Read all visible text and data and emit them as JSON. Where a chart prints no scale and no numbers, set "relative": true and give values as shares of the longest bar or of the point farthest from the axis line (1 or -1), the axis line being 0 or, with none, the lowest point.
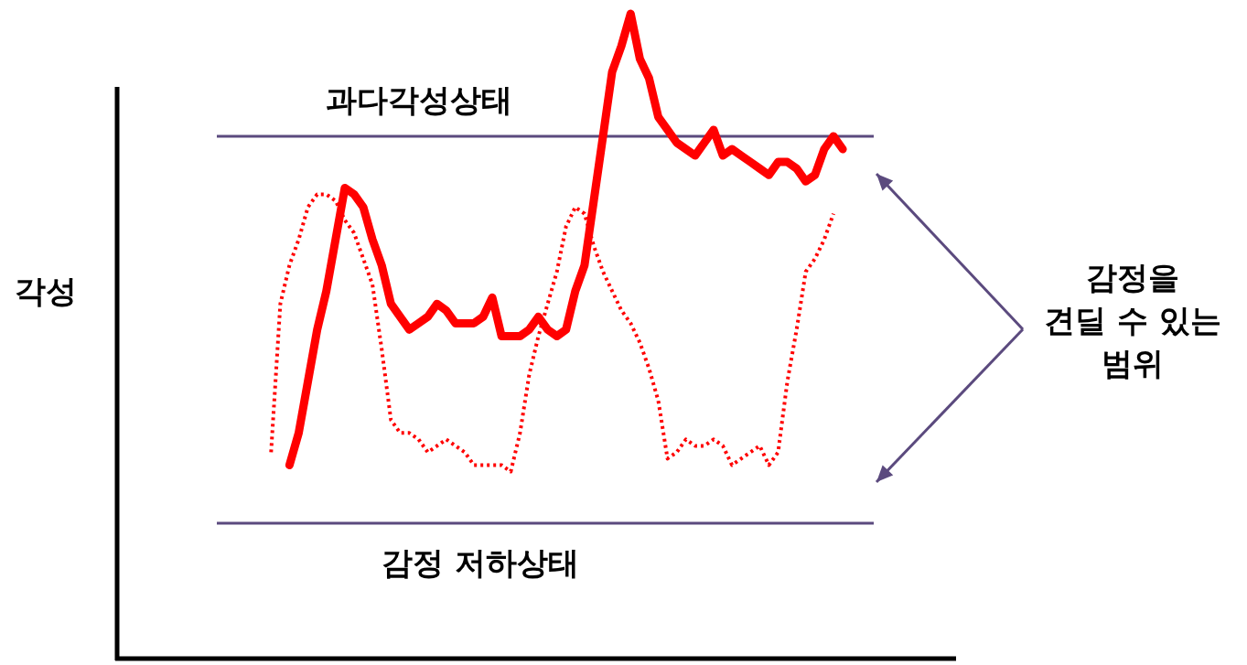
{
  "chart_data": {
    "type": "line",
    "relative": true,
    "ylabel": "각성",
    "categories": [
      null,
      null,
      null,
      null,
      null,
      null,
      null,
      null,
      null,
      null,
      null,
      null,
      null,
      null,
      null,
      null,
      null,
      null,
      null,
      null,
      null,
      null,
      null,
      null,
      null,
      null,
      null,
      null,
      null,
      null,
      null,
      null,
      null,
      null,
      null,
      null,
      null,
      null,
      null,
      null,
      null,
      null,
      null,
      null,
      null,
      null,
      null,
      null,
      null,
      null,
      null,
      null,
      null,
      null,
      null,
      null,
      null,
      null,
      null,
      null,
      null,
      null,
      null,
      null,
      null,
      null,
      null,
      null,
      null,
      null,
      null,
      null,
      null,
      null,
      null,
      null,
      null,
      null,
      null,
      null,
      null,
      null,
      null,
      null,
      null,
      null,
      null,
      null,
      null,
      null,
      null
    ],
    "series": [
      {
        "color": "#ff0000",
        "line_style": "solid",
        "values": [
          null,
          null,
          null,
          null,
          null,
          null,
          null,
          null,
          null,
          null,
          null,
          null,
          null,
          null,
          null,
          null,
          null,
          null,
          0.3,
          0.35,
          0.43,
          0.51,
          0.57,
          0.65,
          0.73,
          0.72,
          0.7,
          0.65,
          0.61,
          0.55,
          0.53,
          0.51,
          0.52,
          0.53,
          0.55,
          0.54,
          0.52,
          0.52,
          0.52,
          0.53,
          0.56,
          0.5,
          0.5,
          0.5,
          0.51,
          0.53,
          0.51,
          0.5,
          0.51,
          0.57,
          0.61,
          0.71,
          0.81,
          0.91,
          0.95,
          1.0,
          0.93,
          0.9,
          0.84,
          0.82,
          0.8,
          0.79,
          0.78,
          0.8,
          0.82,
          0.78,
          0.79,
          0.78,
          0.77,
          0.76,
          0.75,
          0.77,
          0.77,
          0.76,
          0.74,
          0.75,
          0.79,
          0.81,
          0.79,
          null,
          null,
          null,
          null,
          null,
          null,
          null,
          null,
          null,
          null,
          null,
          null
        ]
      },
      {
        "color": "#ff0000",
        "line_style": "dotted",
        "values": [
          null,
          null,
          null,
          null,
          null,
          null,
          null,
          null,
          null,
          null,
          null,
          null,
          null,
          null,
          null,
          null,
          0.32,
          0.55,
          0.61,
          0.65,
          0.7,
          0.72,
          0.72,
          0.71,
          0.68,
          0.66,
          0.62,
          0.58,
          0.48,
          0.37,
          0.35,
          0.35,
          0.34,
          0.32,
          0.33,
          0.34,
          0.33,
          0.32,
          0.3,
          0.3,
          0.3,
          0.3,
          0.29,
          0.35,
          0.44,
          0.5,
          0.55,
          0.6,
          0.67,
          0.7,
          0.69,
          0.64,
          0.6,
          0.57,
          0.54,
          0.52,
          0.49,
          0.45,
          0.4,
          0.31,
          0.32,
          0.34,
          0.33,
          0.33,
          0.34,
          0.33,
          0.3,
          0.31,
          0.32,
          0.33,
          0.3,
          0.32,
          0.43,
          0.51,
          0.6,
          0.62,
          0.65,
          0.69,
          null,
          null,
          null,
          null,
          null,
          null,
          null,
          null,
          null,
          null,
          null,
          null,
          null
        ]
      }
    ],
    "ref_lines": [
      {
        "axis": "y",
        "value": 0.81,
        "label": "과다각성상태",
        "color": "#5b4a7e"
      },
      {
        "axis": "y",
        "value": 0.21,
        "label": "감정 저하상태",
        "color": "#5b4a7e"
      }
    ],
    "annotations": [
      "감정을\n견딜 수 있는\n범위"
    ]
  }
}
